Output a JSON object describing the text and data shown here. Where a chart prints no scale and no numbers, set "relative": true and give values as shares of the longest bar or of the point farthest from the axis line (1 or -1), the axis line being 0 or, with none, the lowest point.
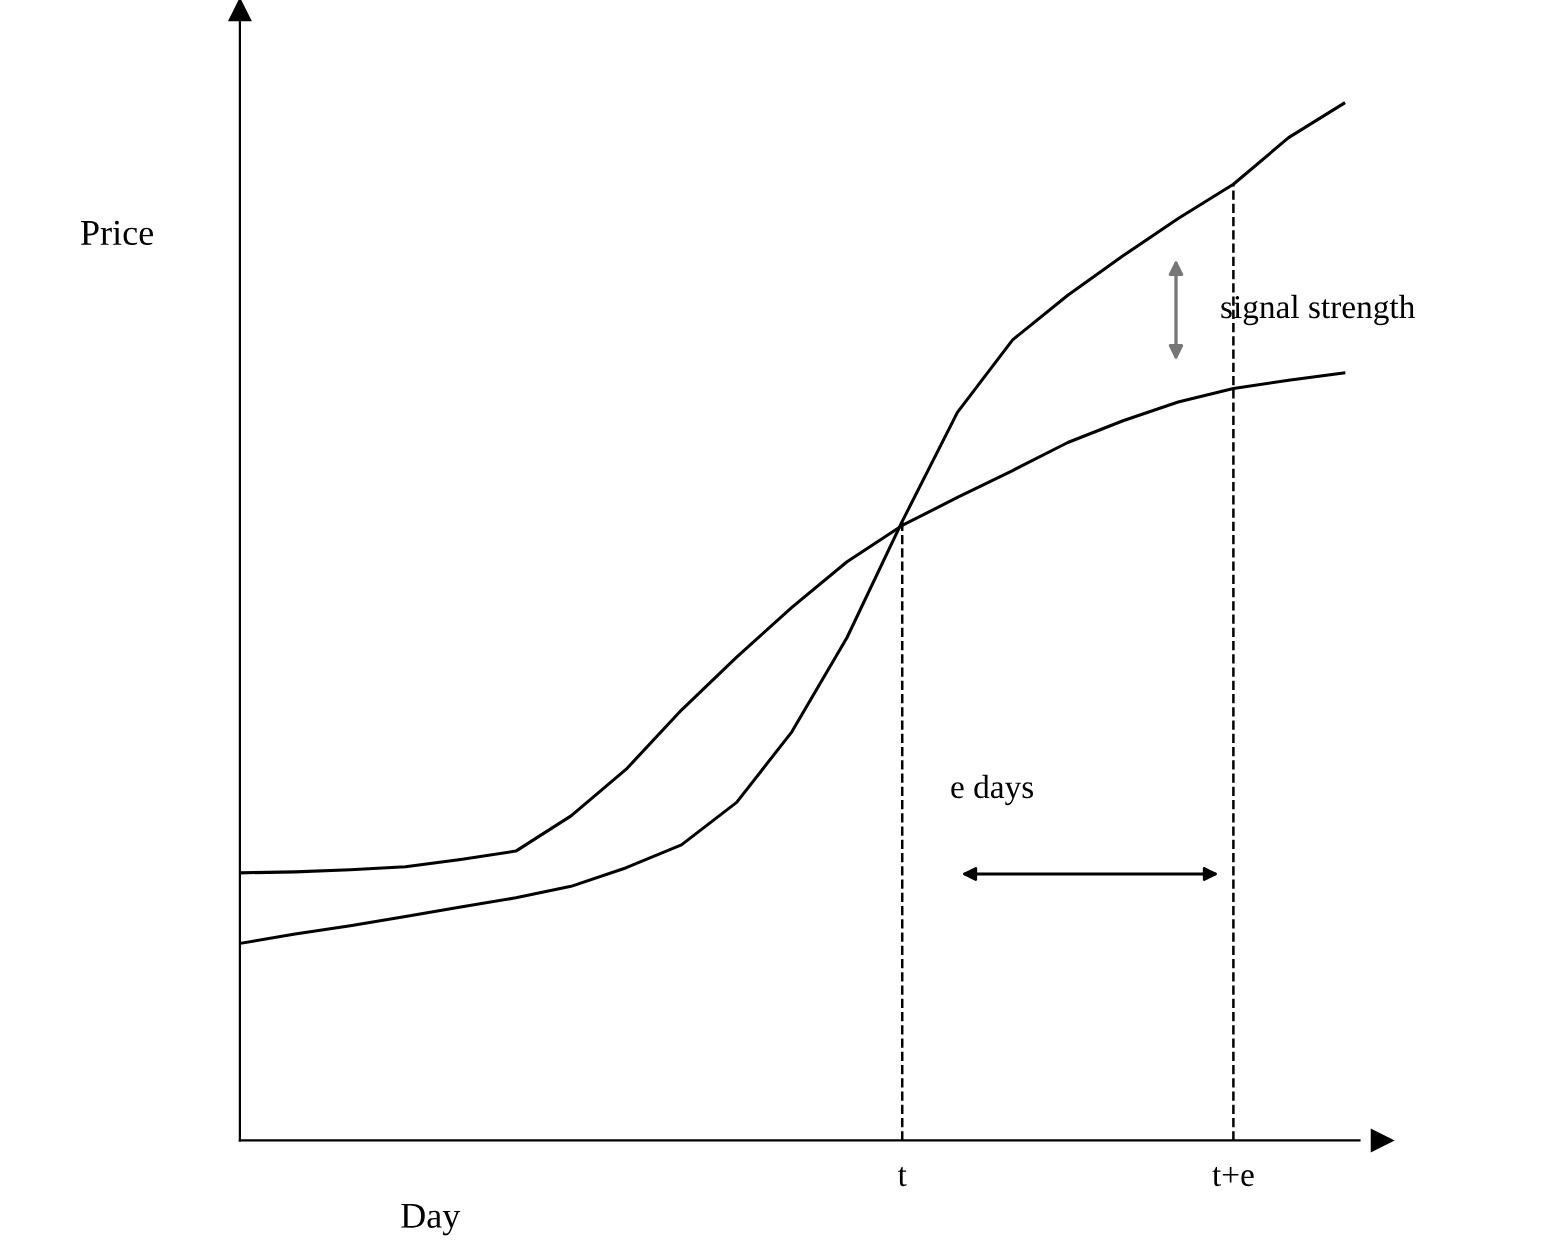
{
  "chart_data": {
    "type": "line",
    "relative": true,
    "xlabel": "Day",
    "ylabel": "Price",
    "categories": [
      null,
      null,
      null,
      null,
      null,
      null,
      null,
      null,
      null,
      null,
      null,
      null,
      "t",
      null,
      null,
      null,
      null,
      null,
      "t+e",
      null,
      null
    ],
    "series": [
      {
        "color": "#000000",
        "values": [
          0.19,
          0.199,
          0.207,
          0.216,
          0.225,
          0.234,
          0.245,
          0.263,
          0.285,
          0.326,
          0.394,
          0.485,
          0.597,
          0.702,
          0.772,
          0.815,
          0.853,
          0.889,
          0.922,
          0.967,
          1.0
        ]
      },
      {
        "color": "#000000",
        "values": [
          0.258,
          0.259,
          0.261,
          0.264,
          0.271,
          0.279,
          0.313,
          0.358,
          0.415,
          0.466,
          0.514,
          0.558,
          0.593,
          0.62,
          0.646,
          0.673,
          0.694,
          0.712,
          0.725,
          0.733,
          0.74
        ]
      }
    ],
    "ref_lines": [
      {
        "axis": "x",
        "value": "t",
        "line_style": "dashed",
        "color": "#000000"
      },
      {
        "axis": "x",
        "value": "t+e",
        "line_style": "dashed",
        "color": "#000000"
      }
    ],
    "annotations": [
      "signal strength",
      "e days"
    ],
    "grid": false,
    "legend": false,
    "marker": "none",
    "line_style": "solid"
  }
}
